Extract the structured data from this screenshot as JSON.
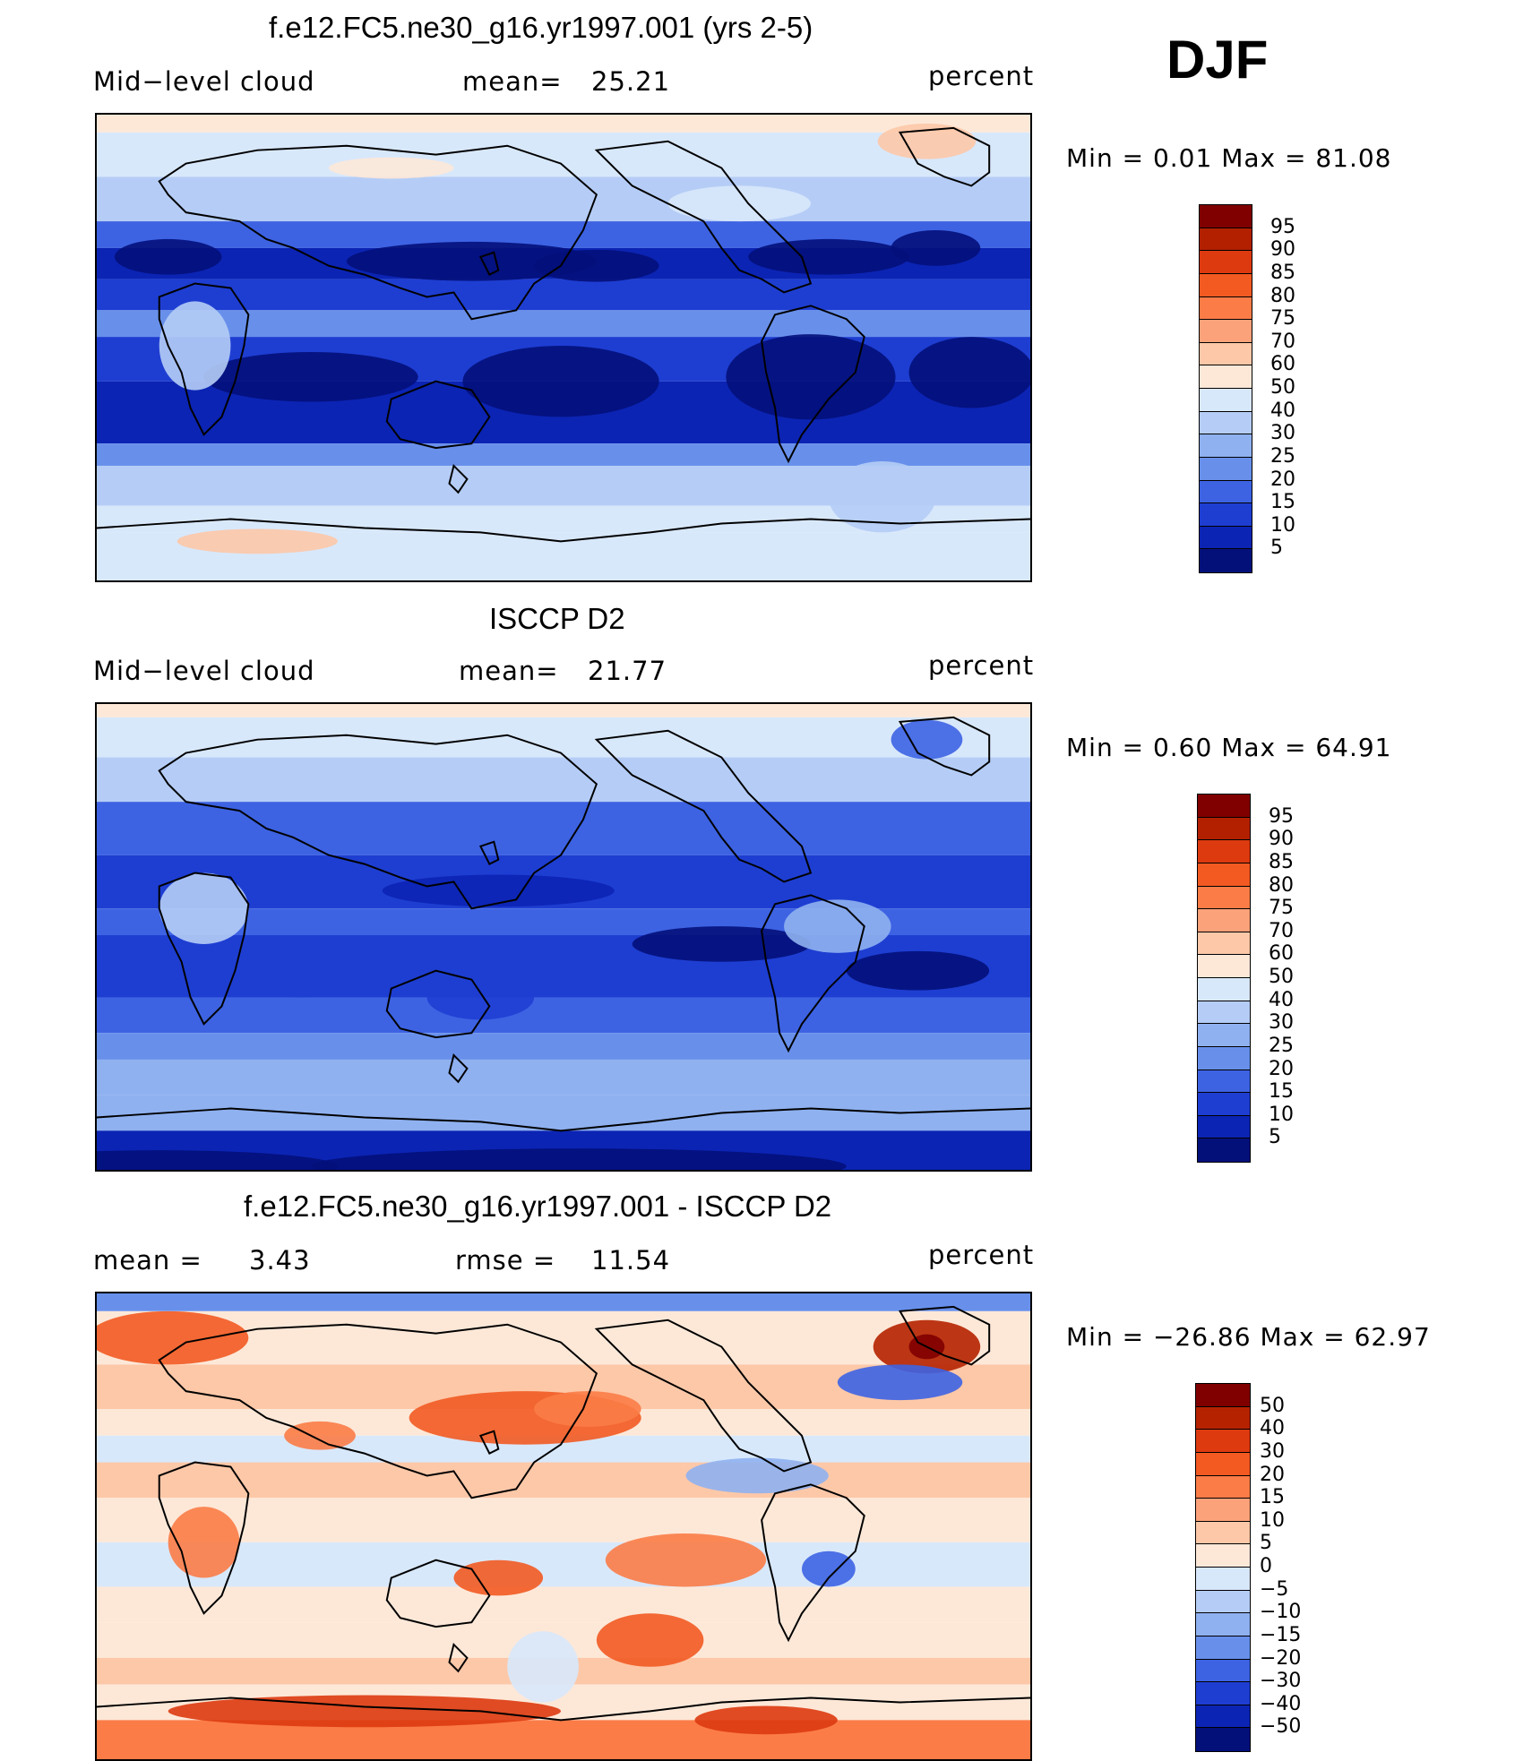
{
  "season": "DJF",
  "units": "percent",
  "coastline_color": "#000000",
  "panels": [
    {
      "title": "f.e12.FC5.ne30_g16.yr1997.001 (yrs 2-5)",
      "left_label": "Mid−level cloud",
      "center_key": "mean=",
      "center_value": "25.21",
      "right_label": "percent",
      "minmax": "Min =    0.01  Max =   81.08",
      "palette": "seq",
      "scheme": "model",
      "colorbar_labels": [
        "95",
        "90",
        "85",
        "80",
        "75",
        "70",
        "60",
        "50",
        "40",
        "30",
        "25",
        "20",
        "15",
        "10",
        "5"
      ]
    },
    {
      "title": "ISCCP D2",
      "left_label": "Mid−level cloud",
      "center_key": "mean=",
      "center_value": "21.77",
      "right_label": "percent",
      "minmax": "Min =    0.60  Max =   64.91",
      "palette": "seq",
      "scheme": "obs",
      "colorbar_labels": [
        "95",
        "90",
        "85",
        "80",
        "75",
        "70",
        "60",
        "50",
        "40",
        "30",
        "25",
        "20",
        "15",
        "10",
        "5"
      ]
    },
    {
      "title": "f.e12.FC5.ne30_g16.yr1997.001 - ISCCP D2",
      "left_label": "mean =",
      "left_value": "3.43",
      "center_key": "rmse =",
      "center_value": "11.54",
      "right_label": "percent",
      "minmax": "Min = −26.86  Max =   62.97",
      "palette": "div",
      "scheme": "diff",
      "colorbar_labels": [
        "50",
        "40",
        "30",
        "20",
        "15",
        "10",
        "5",
        "0",
        "−5",
        "−10",
        "−15",
        "−20",
        "−30",
        "−40",
        "−50"
      ]
    }
  ],
  "palettes": {
    "seq": [
      "#800000",
      "#b22000",
      "#dd3a10",
      "#f25a22",
      "#fb7c47",
      "#fca27a",
      "#fdc8a8",
      "#fde8d8",
      "#d8e8fb",
      "#b5cdf6",
      "#8fb1f0",
      "#6890eb",
      "#3d63e3",
      "#1e3ed2",
      "#0b24b4",
      "#03107a"
    ],
    "div": [
      "#800000",
      "#b52200",
      "#dd3a10",
      "#f25a22",
      "#fb7c47",
      "#fca27a",
      "#fdc8a8",
      "#fde8d8",
      "#d8e8fb",
      "#b5cdf6",
      "#8fb1f0",
      "#6890eb",
      "#3d63e3",
      "#1e3ed2",
      "#0b24b4",
      "#03107a"
    ]
  }
}
